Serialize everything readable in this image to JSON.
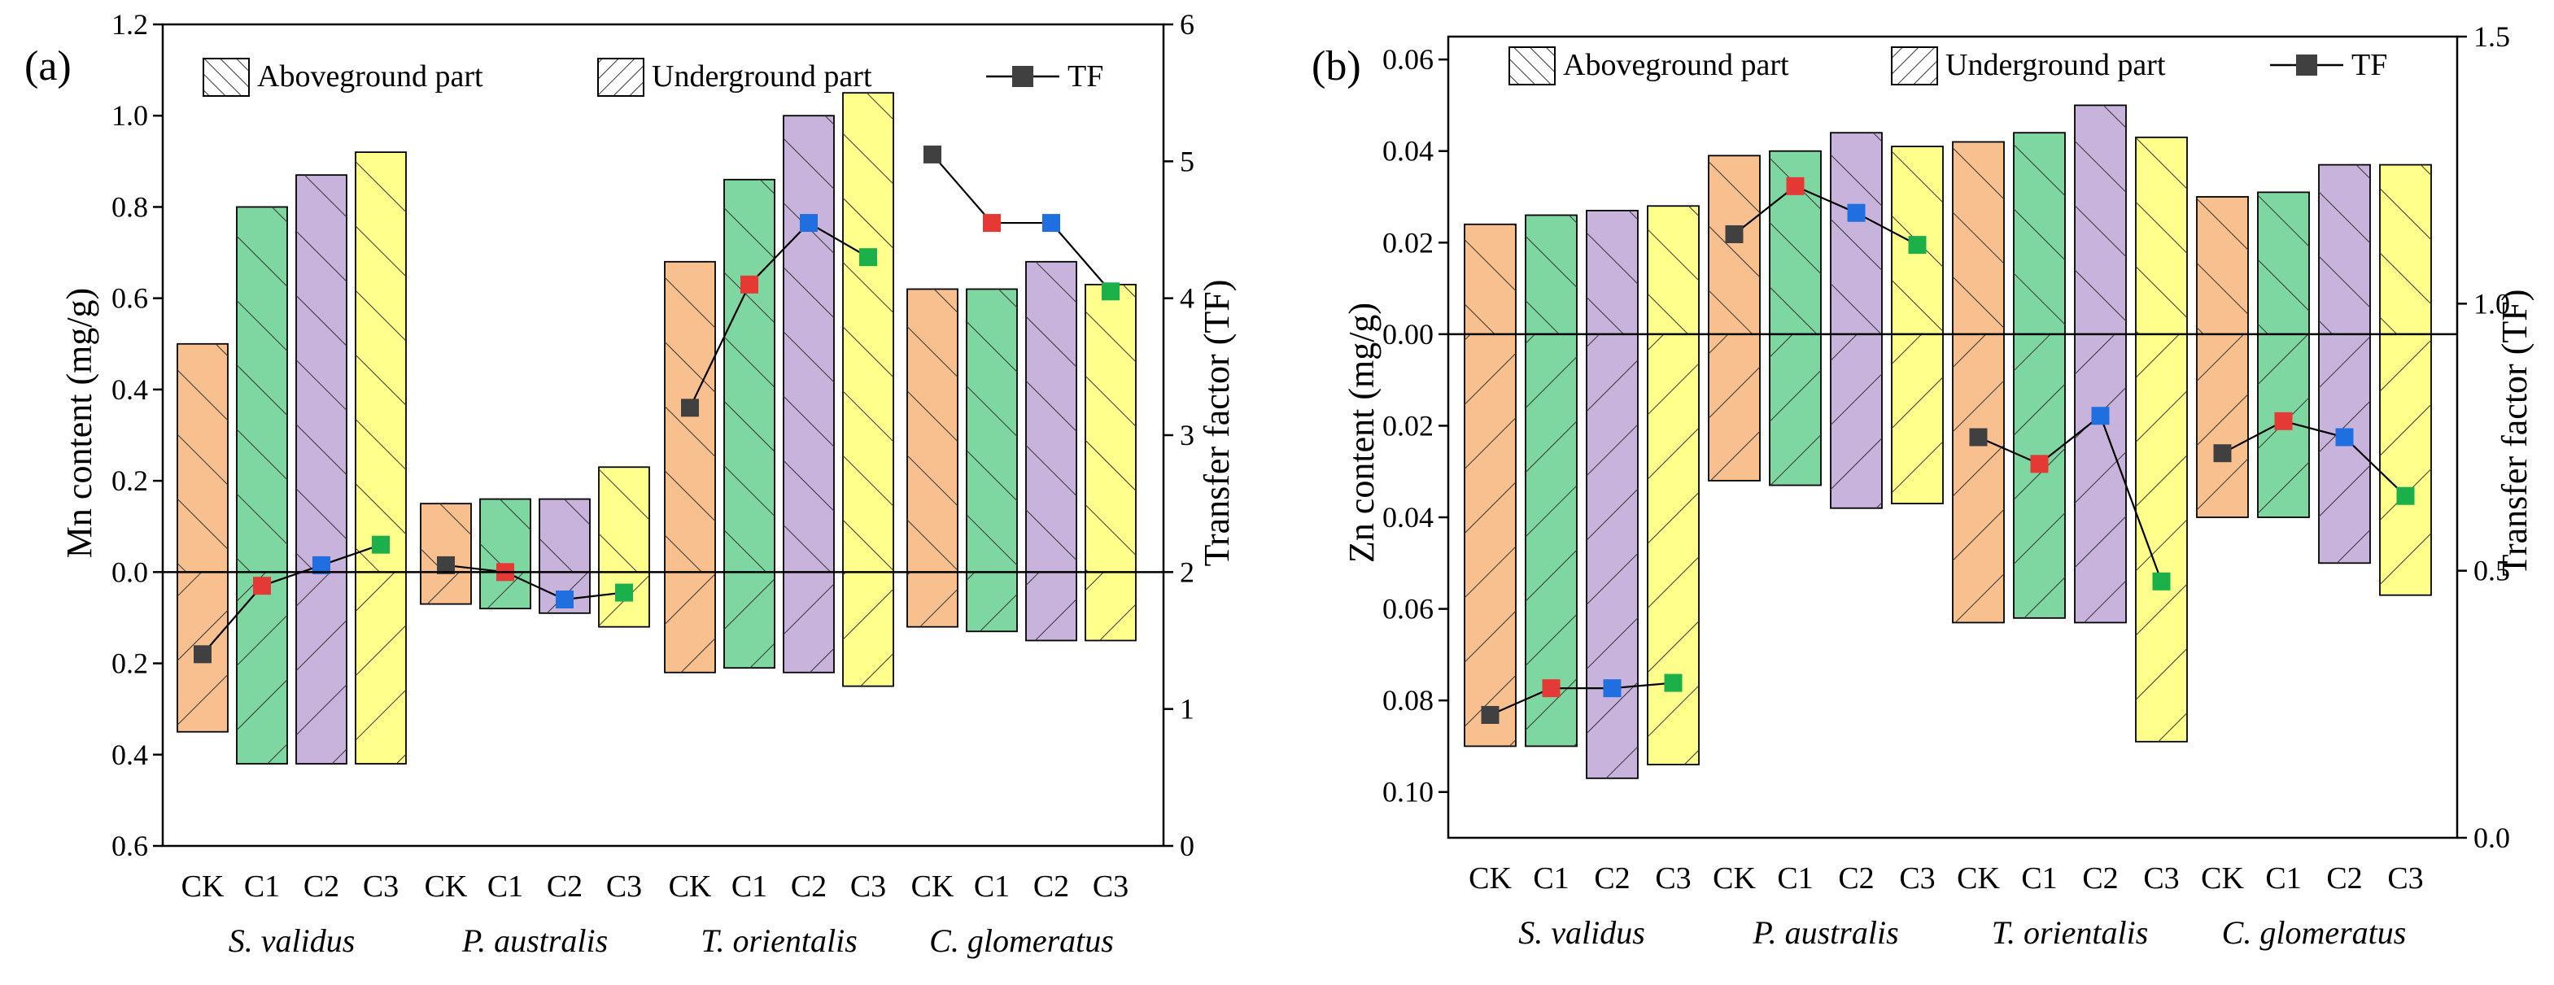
{
  "colors": {
    "CK": "#f9c08f",
    "C1": "#7ed6a1",
    "C2": "#c7b3db",
    "C3": "#ffff8c",
    "TF_CK": "#404040",
    "TF_C1": "#e53935",
    "TF_C2": "#1f6fe0",
    "TF_C3": "#1bb04a",
    "line": "#000000"
  },
  "chart_data": [
    {
      "type": "bar",
      "panel": "(a)",
      "title": "",
      "ylabel": "Mn content (mg/g)",
      "y2label": "Transfer factor (TF)",
      "legend": [
        "Aboveground part",
        "Underground part",
        "TF"
      ],
      "groups": [
        "CK",
        "C1",
        "C2",
        "C3"
      ],
      "species": [
        "S. validus",
        "P. australis",
        "T. orientalis",
        "C. glomeratus"
      ],
      "ylim": [
        -0.6,
        1.2
      ],
      "yticks": [
        -0.6,
        -0.4,
        -0.2,
        0.0,
        0.2,
        0.4,
        0.6,
        0.8,
        1.0,
        1.2
      ],
      "ytick_labels": [
        "0.6",
        "0.4",
        "0.2",
        "0.0",
        "0.2",
        "0.4",
        "0.6",
        "0.8",
        "1.0",
        "1.2"
      ],
      "y2lim": [
        0,
        6
      ],
      "y2ticks": [
        0,
        1,
        2,
        3,
        4,
        5,
        6
      ],
      "y2tick_labels": [
        "0",
        "1",
        "2",
        "3",
        "4",
        "5",
        "6"
      ],
      "above": [
        [
          0.5,
          0.8,
          0.87,
          0.92
        ],
        [
          0.15,
          0.16,
          0.16,
          0.23
        ],
        [
          0.68,
          0.86,
          1.0,
          1.05
        ],
        [
          0.62,
          0.62,
          0.68,
          0.63
        ]
      ],
      "under": [
        [
          0.35,
          0.42,
          0.42,
          0.42
        ],
        [
          0.07,
          0.08,
          0.09,
          0.12
        ],
        [
          0.22,
          0.21,
          0.22,
          0.25
        ],
        [
          0.12,
          0.13,
          0.15,
          0.15
        ]
      ],
      "tf": [
        [
          1.4,
          1.9,
          2.05,
          2.2
        ],
        [
          2.05,
          2.0,
          1.8,
          1.85
        ],
        [
          3.2,
          4.1,
          4.55,
          4.3
        ],
        [
          5.05,
          4.55,
          4.55,
          4.05
        ]
      ]
    },
    {
      "type": "bar",
      "panel": "(b)",
      "title": "",
      "ylabel": "Zn content (mg/g)",
      "y2label": "Transfer factor (TF)",
      "legend": [
        "Aboveground part",
        "Underground part",
        "TF"
      ],
      "groups": [
        "CK",
        "C1",
        "C2",
        "C3"
      ],
      "species": [
        "S. validus",
        "P. australis",
        "T. orientalis",
        "C. glomeratus"
      ],
      "ylim": [
        -0.11,
        0.065
      ],
      "yticks": [
        -0.1,
        -0.08,
        -0.06,
        -0.04,
        -0.02,
        0.0,
        0.02,
        0.04,
        0.06
      ],
      "ytick_labels": [
        "0.10",
        "0.08",
        "0.06",
        "0.04",
        "0.02",
        "0.00",
        "0.02",
        "0.04",
        "0.06"
      ],
      "y2lim": [
        0.0,
        1.5
      ],
      "y2ticks": [
        0.0,
        0.5,
        1.0,
        1.5
      ],
      "y2tick_labels": [
        "0.0",
        "0.5",
        "1.0",
        "1.5"
      ],
      "above": [
        [
          0.024,
          0.026,
          0.027,
          0.028
        ],
        [
          0.039,
          0.04,
          0.044,
          0.041
        ],
        [
          0.042,
          0.044,
          0.05,
          0.043
        ],
        [
          0.03,
          0.031,
          0.037,
          0.037
        ]
      ],
      "under": [
        [
          0.09,
          0.09,
          0.097,
          0.094
        ],
        [
          0.032,
          0.033,
          0.038,
          0.037
        ],
        [
          0.063,
          0.062,
          0.063,
          0.089
        ],
        [
          0.04,
          0.04,
          0.05,
          0.057
        ]
      ],
      "tf": [
        [
          0.23,
          0.28,
          0.28,
          0.29
        ],
        [
          1.13,
          1.22,
          1.17,
          1.11
        ],
        [
          0.75,
          0.7,
          0.79,
          0.48
        ],
        [
          0.72,
          0.78,
          0.75,
          0.64
        ]
      ]
    }
  ]
}
